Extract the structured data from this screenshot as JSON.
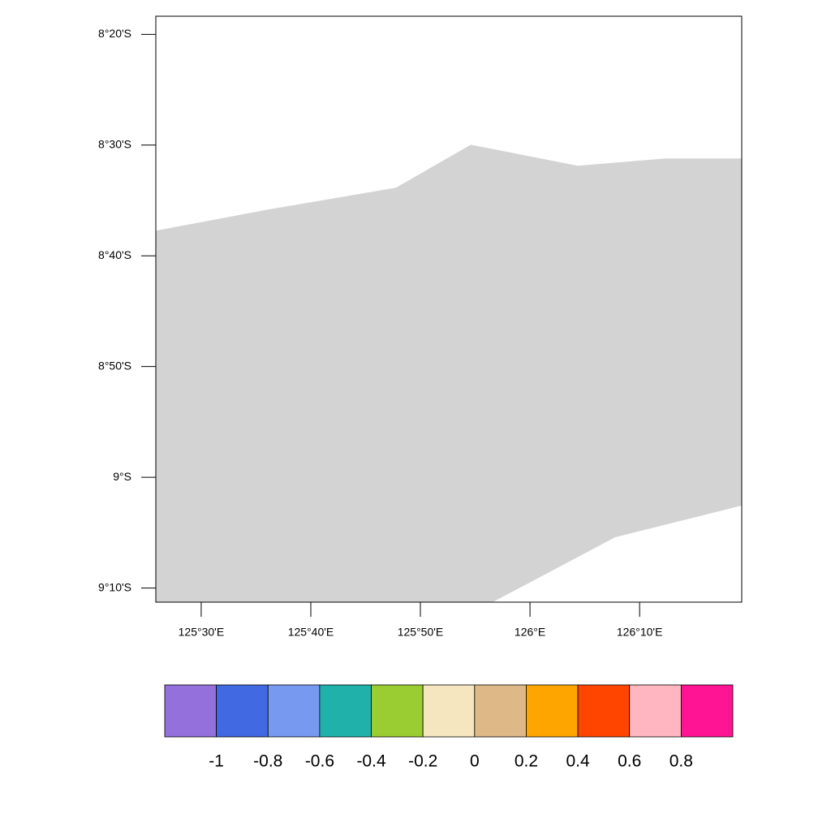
{
  "chart_data": {
    "type": "map",
    "xlim": [
      125.431,
      126.322
    ],
    "ylim": [
      -9.188,
      -8.306
    ],
    "xticks": [
      {
        "value": 125.5,
        "label": "125°30'E"
      },
      {
        "value": 125.6667,
        "label": "125°40'E"
      },
      {
        "value": 125.8333,
        "label": "125°50'E"
      },
      {
        "value": 126,
        "label": "126°E"
      },
      {
        "value": 126.1667,
        "label": "126°10'E"
      }
    ],
    "yticks": [
      {
        "value": -8.3333,
        "label": "8°20'S"
      },
      {
        "value": -8.5,
        "label": "8°30'S"
      },
      {
        "value": -8.6667,
        "label": "8°40'S"
      },
      {
        "value": -8.8333,
        "label": "8°50'S"
      },
      {
        "value": -9,
        "label": "9°S"
      },
      {
        "value": -9.1667,
        "label": "9°10'S"
      }
    ],
    "land": {
      "color": "#d3d3d3",
      "lon": [
        125.431,
        125.6012,
        125.7963,
        125.9099,
        126.0728,
        126.2062,
        126.322,
        126.322,
        126.1296,
        125.9432,
        125.431
      ],
      "lat": [
        -8.6288,
        -8.5971,
        -8.5641,
        -8.4994,
        -8.5311,
        -8.5201,
        -8.5201,
        -9.0427,
        -9.0903,
        -9.188,
        -9.188
      ]
    },
    "colorbar": {
      "colors": [
        "#9370db",
        "#4169e1",
        "#7799f0",
        "#20b2aa",
        "#9acd32",
        "#f5e6c0",
        "#deb887",
        "#ffa500",
        "#ff4500",
        "#ffb6c1",
        "#ff1493"
      ],
      "levels": [
        -1,
        -0.8,
        -0.6,
        -0.4,
        -0.2,
        0,
        0.2,
        0.4,
        0.6,
        0.8
      ]
    }
  }
}
